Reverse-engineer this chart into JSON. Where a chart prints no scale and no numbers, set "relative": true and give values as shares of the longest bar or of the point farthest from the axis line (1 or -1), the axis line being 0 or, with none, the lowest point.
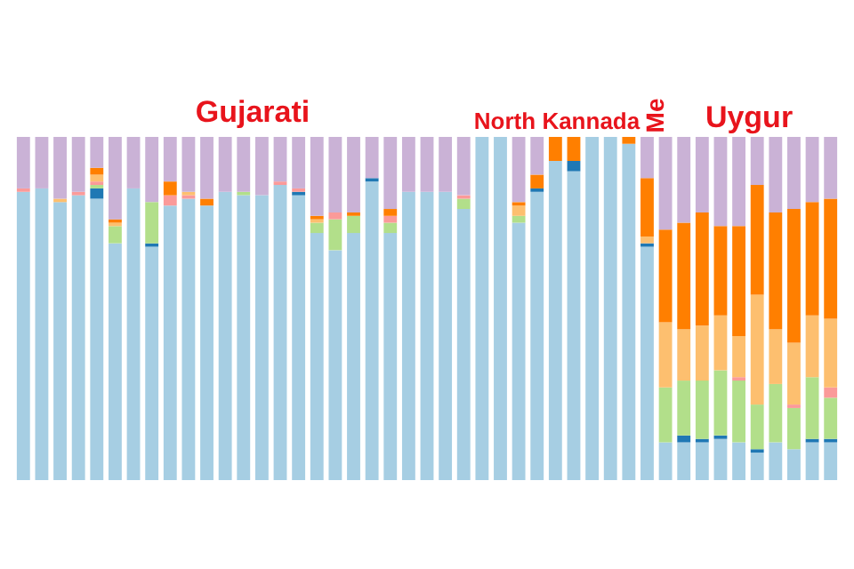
{
  "chart_data": {
    "type": "bar",
    "stacked": true,
    "relative": true,
    "categories": [
      null,
      null,
      null,
      null,
      null,
      null,
      null,
      null,
      null,
      null,
      null,
      null,
      null,
      null,
      null,
      null,
      null,
      null,
      null,
      null,
      null,
      null,
      null,
      null,
      null,
      null,
      null,
      null,
      null,
      null,
      null,
      null,
      null,
      null,
      null,
      null,
      null,
      null,
      null,
      null,
      null,
      null,
      null,
      null,
      null
    ],
    "annotations": [
      "Gujarati",
      "North Kannada",
      "Me",
      "Uygur"
    ],
    "series": [
      {
        "color": "#a6cee3",
        "values": [
          0.84,
          0.85,
          0.81,
          0.83,
          0.82,
          0.69,
          0.85,
          0.68,
          0.8,
          0.82,
          0.8,
          0.84,
          0.83,
          0.83,
          0.86,
          0.83,
          0.72,
          0.67,
          0.72,
          0.87,
          0.72,
          0.84,
          0.84,
          0.84,
          0.79,
          1,
          1,
          0.75,
          0.84,
          0.93,
          0.9,
          1,
          1,
          0.98,
          0.68,
          0.11,
          0.11,
          0.11,
          0.12,
          0.11,
          0.08,
          0.11,
          0.09,
          0.11,
          0.11
        ]
      },
      {
        "color": "#1f78b4",
        "values": [
          null,
          null,
          null,
          null,
          0.03,
          null,
          null,
          0.01,
          null,
          null,
          null,
          null,
          null,
          null,
          null,
          0.01,
          null,
          null,
          null,
          0.01,
          null,
          null,
          null,
          null,
          null,
          null,
          null,
          null,
          0.01,
          null,
          0.03,
          null,
          null,
          null,
          0.01,
          null,
          0.02,
          0.01,
          0.01,
          null,
          0.01,
          null,
          null,
          0.01,
          0.01
        ]
      },
      {
        "color": "#b2df8a",
        "values": [
          null,
          null,
          null,
          null,
          0.01,
          0.05,
          null,
          0.12,
          null,
          null,
          null,
          null,
          0.01,
          null,
          null,
          null,
          0.03,
          0.09,
          0.05,
          null,
          0.03,
          null,
          null,
          null,
          0.03,
          null,
          null,
          0.02,
          null,
          null,
          null,
          null,
          null,
          null,
          null,
          0.16,
          0.16,
          0.17,
          0.19,
          0.18,
          0.13,
          0.17,
          0.12,
          0.18,
          0.12
        ]
      },
      {
        "color": "#fb9a99",
        "values": [
          0.01,
          null,
          null,
          0.01,
          0.01,
          null,
          null,
          null,
          0.03,
          0.01,
          null,
          null,
          null,
          null,
          0.01,
          0.01,
          null,
          0.02,
          null,
          null,
          0.02,
          null,
          null,
          null,
          0.01,
          null,
          null,
          null,
          null,
          null,
          null,
          null,
          null,
          null,
          null,
          null,
          null,
          null,
          null,
          0.01,
          null,
          null,
          0.01,
          null,
          0.03
        ]
      },
      {
        "color": "#fdbf6f",
        "values": [
          null,
          null,
          0.01,
          null,
          0.02,
          0.01,
          null,
          null,
          null,
          0.01,
          null,
          null,
          null,
          null,
          null,
          null,
          0.01,
          null,
          null,
          null,
          null,
          null,
          null,
          null,
          null,
          null,
          null,
          0.03,
          null,
          null,
          null,
          null,
          null,
          null,
          0.02,
          0.19,
          0.15,
          0.16,
          0.16,
          0.12,
          0.32,
          0.16,
          0.18,
          0.18,
          0.2
        ]
      },
      {
        "color": "#ff7f00",
        "values": [
          null,
          null,
          null,
          null,
          0.02,
          0.01,
          null,
          null,
          0.04,
          null,
          0.02,
          null,
          null,
          null,
          null,
          null,
          0.01,
          null,
          0.01,
          null,
          0.02,
          null,
          null,
          null,
          null,
          null,
          null,
          0.01,
          0.04,
          0.07,
          0.07,
          null,
          null,
          0.02,
          0.17,
          0.27,
          0.31,
          0.33,
          0.26,
          0.32,
          0.32,
          0.34,
          0.39,
          0.33,
          0.35
        ]
      },
      {
        "color": "#cab2d6",
        "values": [
          0.15,
          0.15,
          0.18,
          0.16,
          0.09,
          0.24,
          0.15,
          0.19,
          0.13,
          0.16,
          0.18,
          0.16,
          0.16,
          0.17,
          0.13,
          0.15,
          0.23,
          0.22,
          0.22,
          0.12,
          0.21,
          0.16,
          0.16,
          0.16,
          0.17,
          null,
          null,
          0.19,
          0.11,
          null,
          null,
          null,
          null,
          null,
          0.12,
          0.27,
          0.25,
          0.22,
          0.26,
          0.26,
          0.14,
          0.22,
          0.21,
          0.19,
          0.18
        ]
      }
    ]
  }
}
